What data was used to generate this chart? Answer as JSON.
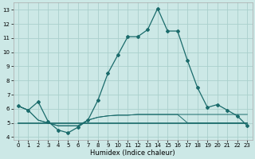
{
  "xlabel": "Humidex (Indice chaleur)",
  "xlim": [
    -0.5,
    23.5
  ],
  "ylim": [
    3.8,
    13.5
  ],
  "yticks": [
    4,
    5,
    6,
    7,
    8,
    9,
    10,
    11,
    12,
    13
  ],
  "xticks": [
    0,
    1,
    2,
    3,
    4,
    5,
    6,
    7,
    8,
    9,
    10,
    11,
    12,
    13,
    14,
    15,
    16,
    17,
    18,
    19,
    20,
    21,
    22,
    23
  ],
  "bg_color": "#cce8e6",
  "grid_color": "#aad0cc",
  "line_color": "#1a6b6b",
  "main_line": [
    6.2,
    5.9,
    6.5,
    5.1,
    4.5,
    4.3,
    4.7,
    5.2,
    6.6,
    8.5,
    9.8,
    11.1,
    11.1,
    11.6,
    13.1,
    11.5,
    11.5,
    9.4,
    7.5,
    6.1,
    6.3,
    5.9,
    5.5,
    4.8
  ],
  "slow_line1": [
    6.2,
    5.9,
    5.2,
    5.0,
    4.8,
    4.8,
    4.8,
    5.2,
    5.4,
    5.5,
    5.55,
    5.55,
    5.6,
    5.6,
    5.6,
    5.6,
    5.6,
    5.6,
    5.6,
    5.6,
    5.6,
    5.6,
    5.6,
    5.6
  ],
  "slow_line2": [
    6.2,
    5.9,
    5.2,
    5.0,
    4.8,
    4.8,
    4.8,
    5.2,
    5.4,
    5.5,
    5.55,
    5.55,
    5.6,
    5.6,
    5.6,
    5.6,
    5.6,
    5.0,
    5.0,
    5.0,
    5.0,
    5.0,
    5.0,
    5.0
  ],
  "flat_line": [
    5.0,
    5.0,
    5.0,
    5.0,
    5.0,
    5.0,
    5.0,
    5.0,
    5.0,
    5.0,
    5.0,
    5.0,
    5.0,
    5.0,
    5.0,
    5.0,
    5.0,
    5.0,
    5.0,
    5.0,
    5.0,
    5.0,
    5.0,
    5.0
  ]
}
